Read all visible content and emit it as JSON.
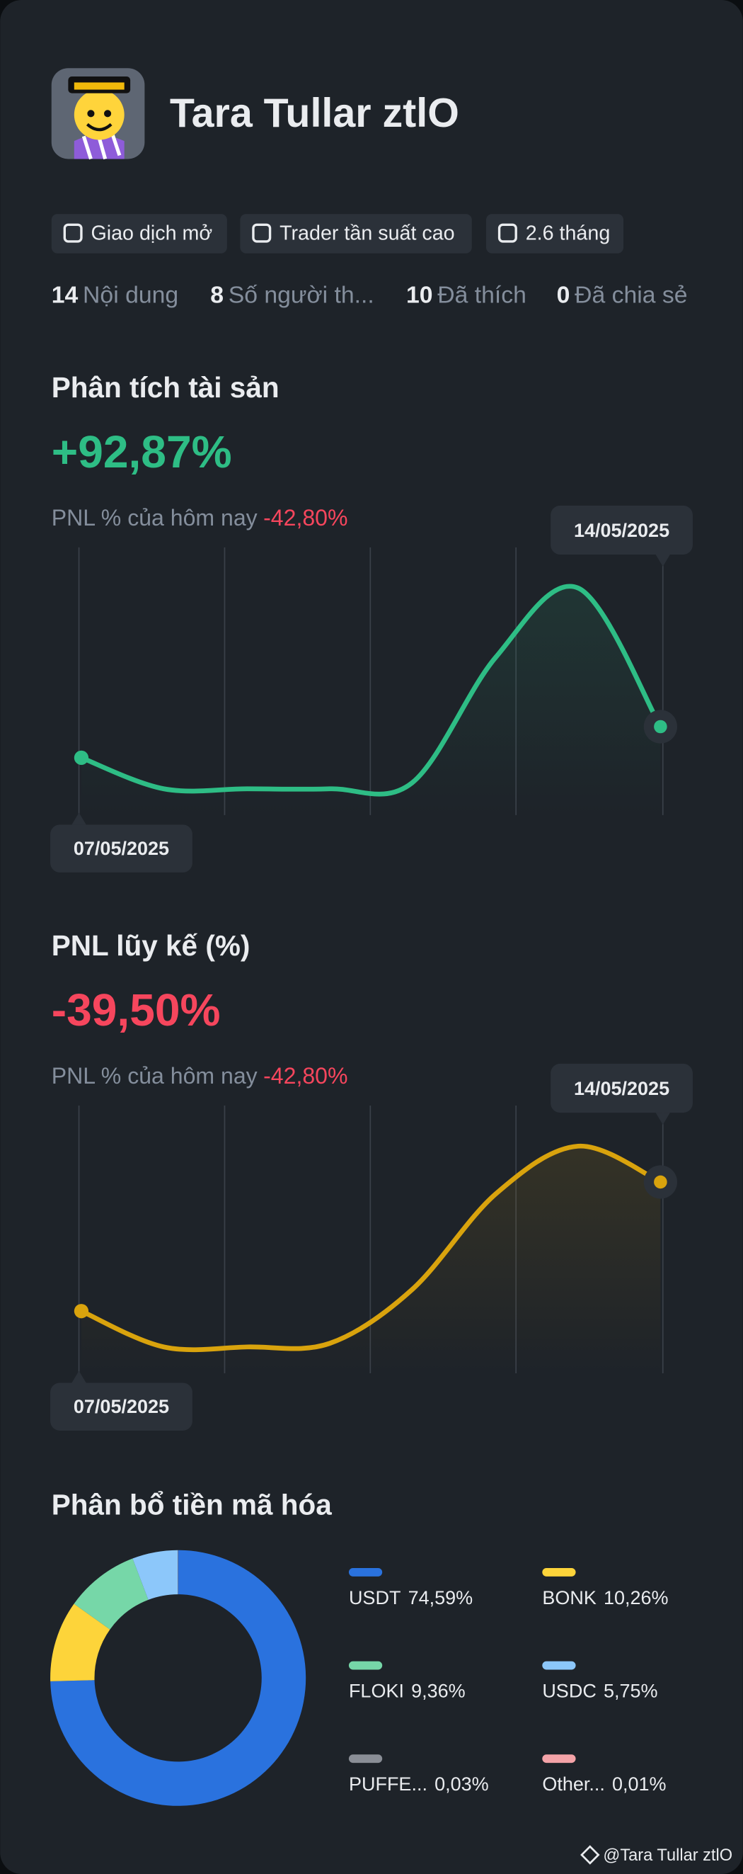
{
  "profile": {
    "name": "Tara Tullar ztlO",
    "tags": [
      "Giao dịch mở",
      "Trader tần suất cao",
      "2.6 tháng"
    ],
    "stats": [
      {
        "value": 14,
        "label": "Nội dung"
      },
      {
        "value": 8,
        "label": "Số người th..."
      },
      {
        "value": 10,
        "label": "Đã thích"
      },
      {
        "value": 0,
        "label": "Đã chia sẻ"
      }
    ]
  },
  "charts": [
    {
      "type": "line",
      "title": "Phân tích tài sản",
      "headline": "+92,87%",
      "headline_color": "#2ebd85",
      "today_label": "PNL % của hôm nay",
      "today_value": "-42,80%",
      "start_date": "07/05/2025",
      "end_date": "14/05/2025",
      "color": "#2ebd85",
      "values": [
        26,
        0,
        0,
        0,
        5,
        110,
        168,
        52
      ]
    },
    {
      "type": "line",
      "title": "PNL lũy kế (%)",
      "headline": "-39,50%",
      "headline_color": "#f6465d",
      "today_label": "PNL % của hôm nay",
      "today_value": "-42,80%",
      "start_date": "07/05/2025",
      "end_date": "14/05/2025",
      "color": "#d9a30d",
      "values": [
        30,
        0,
        0,
        3,
        48,
        128,
        168,
        138
      ]
    }
  ],
  "allocation": {
    "type": "donut",
    "title": "Phân bổ tiền mã hóa",
    "categories": [
      "USDT",
      "BONK",
      "FLOKI",
      "USDC",
      "PUFFE...",
      "Other..."
    ],
    "values": [
      74.59,
      10.26,
      9.36,
      5.75,
      0.03,
      0.01
    ],
    "value_labels": [
      "74,59%",
      "10,26%",
      "9,36%",
      "5,75%",
      "0,03%",
      "0,01%"
    ],
    "colors": [
      "#2a72de",
      "#fdd43a",
      "#76d7a8",
      "#8cc7fa",
      "#8a8e96",
      "#f4a3a8"
    ]
  },
  "watermark": "@Tara Tullar ztlO"
}
